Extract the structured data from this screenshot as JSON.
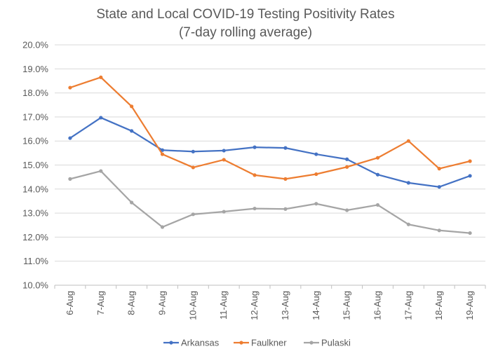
{
  "chart_data": {
    "type": "line",
    "title": "State and Local COVID-19 Testing Positivity Rates",
    "subtitle": "(7-day rolling average)",
    "xlabel": "",
    "ylabel": "",
    "categories": [
      "6-Aug",
      "7-Aug",
      "8-Aug",
      "9-Aug",
      "10-Aug",
      "11-Aug",
      "12-Aug",
      "13-Aug",
      "14-Aug",
      "15-Aug",
      "16-Aug",
      "17-Aug",
      "18-Aug",
      "19-Aug"
    ],
    "ylim": [
      10.0,
      20.0
    ],
    "yticks": [
      10.0,
      11.0,
      12.0,
      13.0,
      14.0,
      15.0,
      16.0,
      17.0,
      18.0,
      19.0,
      20.0
    ],
    "ytick_labels": [
      "10.0%",
      "11.0%",
      "12.0%",
      "13.0%",
      "14.0%",
      "15.0%",
      "16.0%",
      "17.0%",
      "18.0%",
      "19.0%",
      "20.0%"
    ],
    "grid": true,
    "legend_position": "bottom",
    "series": [
      {
        "name": "Arkansas",
        "color": "#4472c4",
        "values": [
          16.12,
          16.97,
          16.42,
          15.62,
          15.56,
          15.6,
          15.74,
          15.71,
          15.45,
          15.24,
          14.6,
          14.26,
          14.09,
          14.55
        ]
      },
      {
        "name": "Faulkner",
        "color": "#ed7d31",
        "values": [
          18.22,
          18.65,
          17.44,
          15.45,
          14.9,
          15.22,
          14.58,
          14.42,
          14.62,
          14.92,
          15.3,
          16.0,
          14.85,
          15.16
        ]
      },
      {
        "name": "Pulaski",
        "color": "#a5a5a5",
        "values": [
          14.42,
          14.75,
          13.44,
          12.42,
          12.95,
          13.06,
          13.19,
          13.17,
          13.39,
          13.12,
          13.34,
          12.53,
          12.28,
          12.17
        ]
      }
    ]
  }
}
